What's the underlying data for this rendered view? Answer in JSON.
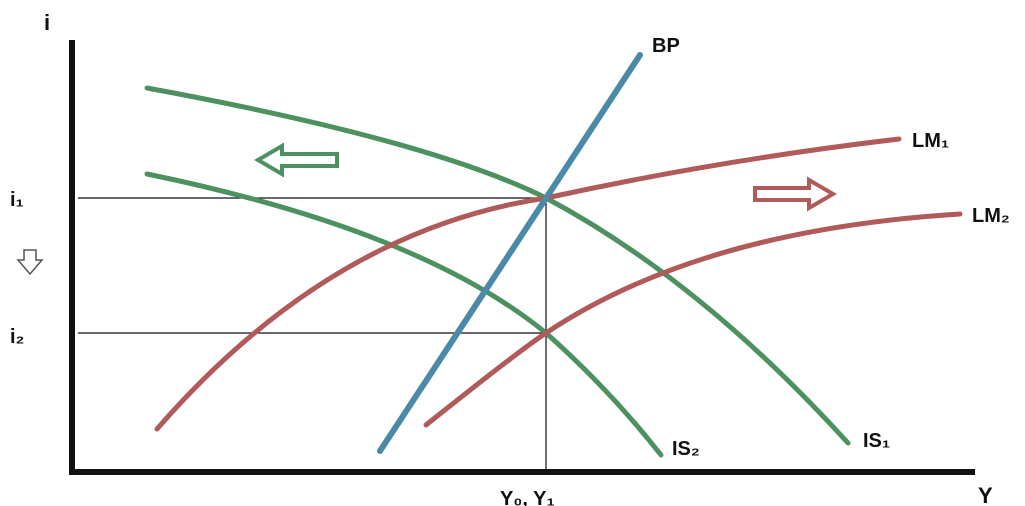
{
  "axes": {
    "y_label": "i",
    "x_label": "Y",
    "i1_label": "i₁",
    "i2_label": "i₂",
    "x_tick_label": "Y₀, Y₁"
  },
  "curves": {
    "bp": {
      "label": "BP",
      "color": "#4a8aa8"
    },
    "lm1": {
      "label": "LM₁",
      "color": "#b05a5a"
    },
    "lm2": {
      "label": "LM₂",
      "color": "#b05a5a"
    },
    "is1": {
      "label": "IS₁",
      "color": "#4e9160"
    },
    "is2": {
      "label": "IS₂",
      "color": "#4e9160"
    }
  },
  "arrows": {
    "is_shift": {
      "direction": "left",
      "color": "#4e9160"
    },
    "lm_shift": {
      "direction": "right",
      "color": "#b05a5a"
    },
    "i_shift": {
      "direction": "down",
      "color": "#555555"
    }
  }
}
